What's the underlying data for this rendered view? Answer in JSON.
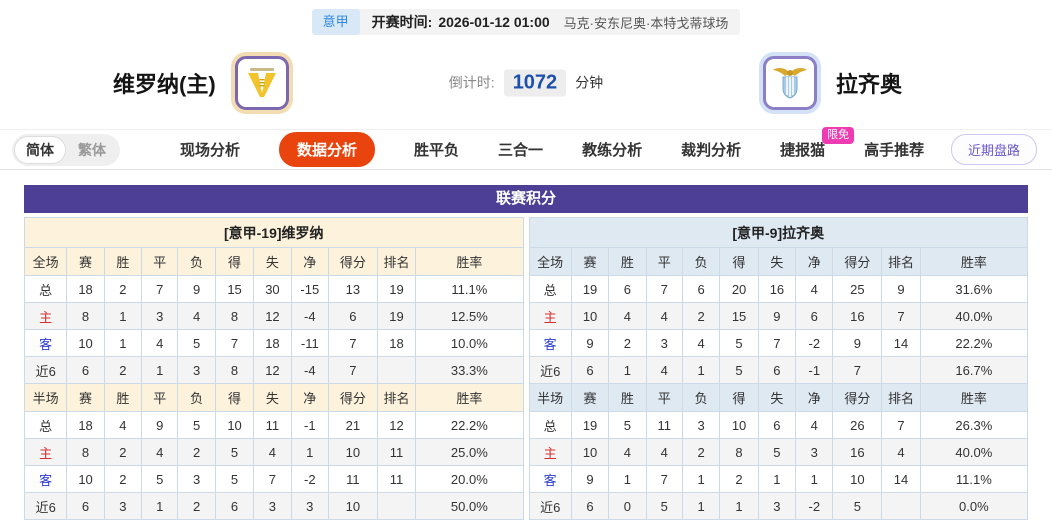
{
  "topbar": {
    "league": "意甲",
    "kickoff_label": "开赛时间:",
    "kickoff_time": "2026-01-12 01:00",
    "venue": "马克·安东尼奥·本特戈蒂球场"
  },
  "header": {
    "home_team": "维罗纳(主)",
    "away_team": "拉齐奥",
    "countdown_label": "倒计时:",
    "countdown_value": "1072",
    "countdown_unit": "分钟"
  },
  "nav": {
    "lang_simplified": "简体",
    "lang_traditional": "繁体",
    "tabs": [
      {
        "label": "现场分析",
        "active": false
      },
      {
        "label": "数据分析",
        "active": true
      },
      {
        "label": "胜平负",
        "active": false
      },
      {
        "label": "三合一",
        "active": false
      },
      {
        "label": "教练分析",
        "active": false
      },
      {
        "label": "裁判分析",
        "active": false
      },
      {
        "label": "捷报猫",
        "active": false,
        "badge": "限免"
      },
      {
        "label": "高手推荐",
        "active": false
      }
    ],
    "recent_button": "近期盘路"
  },
  "table": {
    "title": "联赛积分",
    "left": {
      "team_title": "[意甲-19]维罗纳",
      "full": {
        "headers": [
          "全场",
          "赛",
          "胜",
          "平",
          "负",
          "得",
          "失",
          "净",
          "得分",
          "排名",
          "胜率"
        ],
        "rows": [
          {
            "label": "总",
            "cells": [
              "18",
              "2",
              "7",
              "9",
              "15",
              "30",
              "-15",
              "13",
              "19",
              "11.1%"
            ]
          },
          {
            "label": "主",
            "cells": [
              "8",
              "1",
              "3",
              "4",
              "8",
              "12",
              "-4",
              "6",
              "19",
              "12.5%"
            ]
          },
          {
            "label": "客",
            "cells": [
              "10",
              "1",
              "4",
              "5",
              "7",
              "18",
              "-11",
              "7",
              "18",
              "10.0%"
            ]
          },
          {
            "label": "近6",
            "cells": [
              "6",
              "2",
              "1",
              "3",
              "8",
              "12",
              "-4",
              "7",
              "",
              "33.3%"
            ]
          }
        ]
      },
      "half": {
        "headers": [
          "半场",
          "赛",
          "胜",
          "平",
          "负",
          "得",
          "失",
          "净",
          "得分",
          "排名",
          "胜率"
        ],
        "rows": [
          {
            "label": "总",
            "cells": [
              "18",
              "4",
              "9",
              "5",
              "10",
              "11",
              "-1",
              "21",
              "12",
              "22.2%"
            ]
          },
          {
            "label": "主",
            "cells": [
              "8",
              "2",
              "4",
              "2",
              "5",
              "4",
              "1",
              "10",
              "11",
              "25.0%"
            ]
          },
          {
            "label": "客",
            "cells": [
              "10",
              "2",
              "5",
              "3",
              "5",
              "7",
              "-2",
              "11",
              "11",
              "20.0%"
            ]
          },
          {
            "label": "近6",
            "cells": [
              "6",
              "3",
              "1",
              "2",
              "6",
              "3",
              "3",
              "10",
              "",
              "50.0%"
            ]
          }
        ]
      }
    },
    "right": {
      "team_title": "[意甲-9]拉齐奥",
      "full": {
        "headers": [
          "全场",
          "赛",
          "胜",
          "平",
          "负",
          "得",
          "失",
          "净",
          "得分",
          "排名",
          "胜率"
        ],
        "rows": [
          {
            "label": "总",
            "cells": [
              "19",
              "6",
              "7",
              "6",
              "20",
              "16",
              "4",
              "25",
              "9",
              "31.6%"
            ]
          },
          {
            "label": "主",
            "cells": [
              "10",
              "4",
              "4",
              "2",
              "15",
              "9",
              "6",
              "16",
              "7",
              "40.0%"
            ]
          },
          {
            "label": "客",
            "cells": [
              "9",
              "2",
              "3",
              "4",
              "5",
              "7",
              "-2",
              "9",
              "14",
              "22.2%"
            ]
          },
          {
            "label": "近6",
            "cells": [
              "6",
              "1",
              "4",
              "1",
              "5",
              "6",
              "-1",
              "7",
              "",
              "16.7%"
            ]
          }
        ]
      },
      "half": {
        "headers": [
          "半场",
          "赛",
          "胜",
          "平",
          "负",
          "得",
          "失",
          "净",
          "得分",
          "排名",
          "胜率"
        ],
        "rows": [
          {
            "label": "总",
            "cells": [
              "19",
              "5",
              "11",
              "3",
              "10",
              "6",
              "4",
              "26",
              "7",
              "26.3%"
            ]
          },
          {
            "label": "主",
            "cells": [
              "10",
              "4",
              "4",
              "2",
              "8",
              "5",
              "3",
              "16",
              "4",
              "40.0%"
            ]
          },
          {
            "label": "客",
            "cells": [
              "9",
              "1",
              "7",
              "1",
              "2",
              "1",
              "1",
              "10",
              "14",
              "11.1%"
            ]
          },
          {
            "label": "近6",
            "cells": [
              "6",
              "0",
              "5",
              "1",
              "1",
              "3",
              "-2",
              "5",
              "",
              "0.0%"
            ]
          }
        ]
      }
    }
  },
  "colors": {
    "table_header_purple": "#4c3f95",
    "active_tab_orange": "#e9440e",
    "badge_pink": "#ee3bb1",
    "league_badge_blue": "#2e87e0",
    "home_row_red": "#d43030",
    "away_row_blue": "#2b3cd0",
    "left_section_cream": "#fdf3dc",
    "right_section_blue": "#dfe9f2",
    "countdown_blue": "#1d50ad"
  }
}
